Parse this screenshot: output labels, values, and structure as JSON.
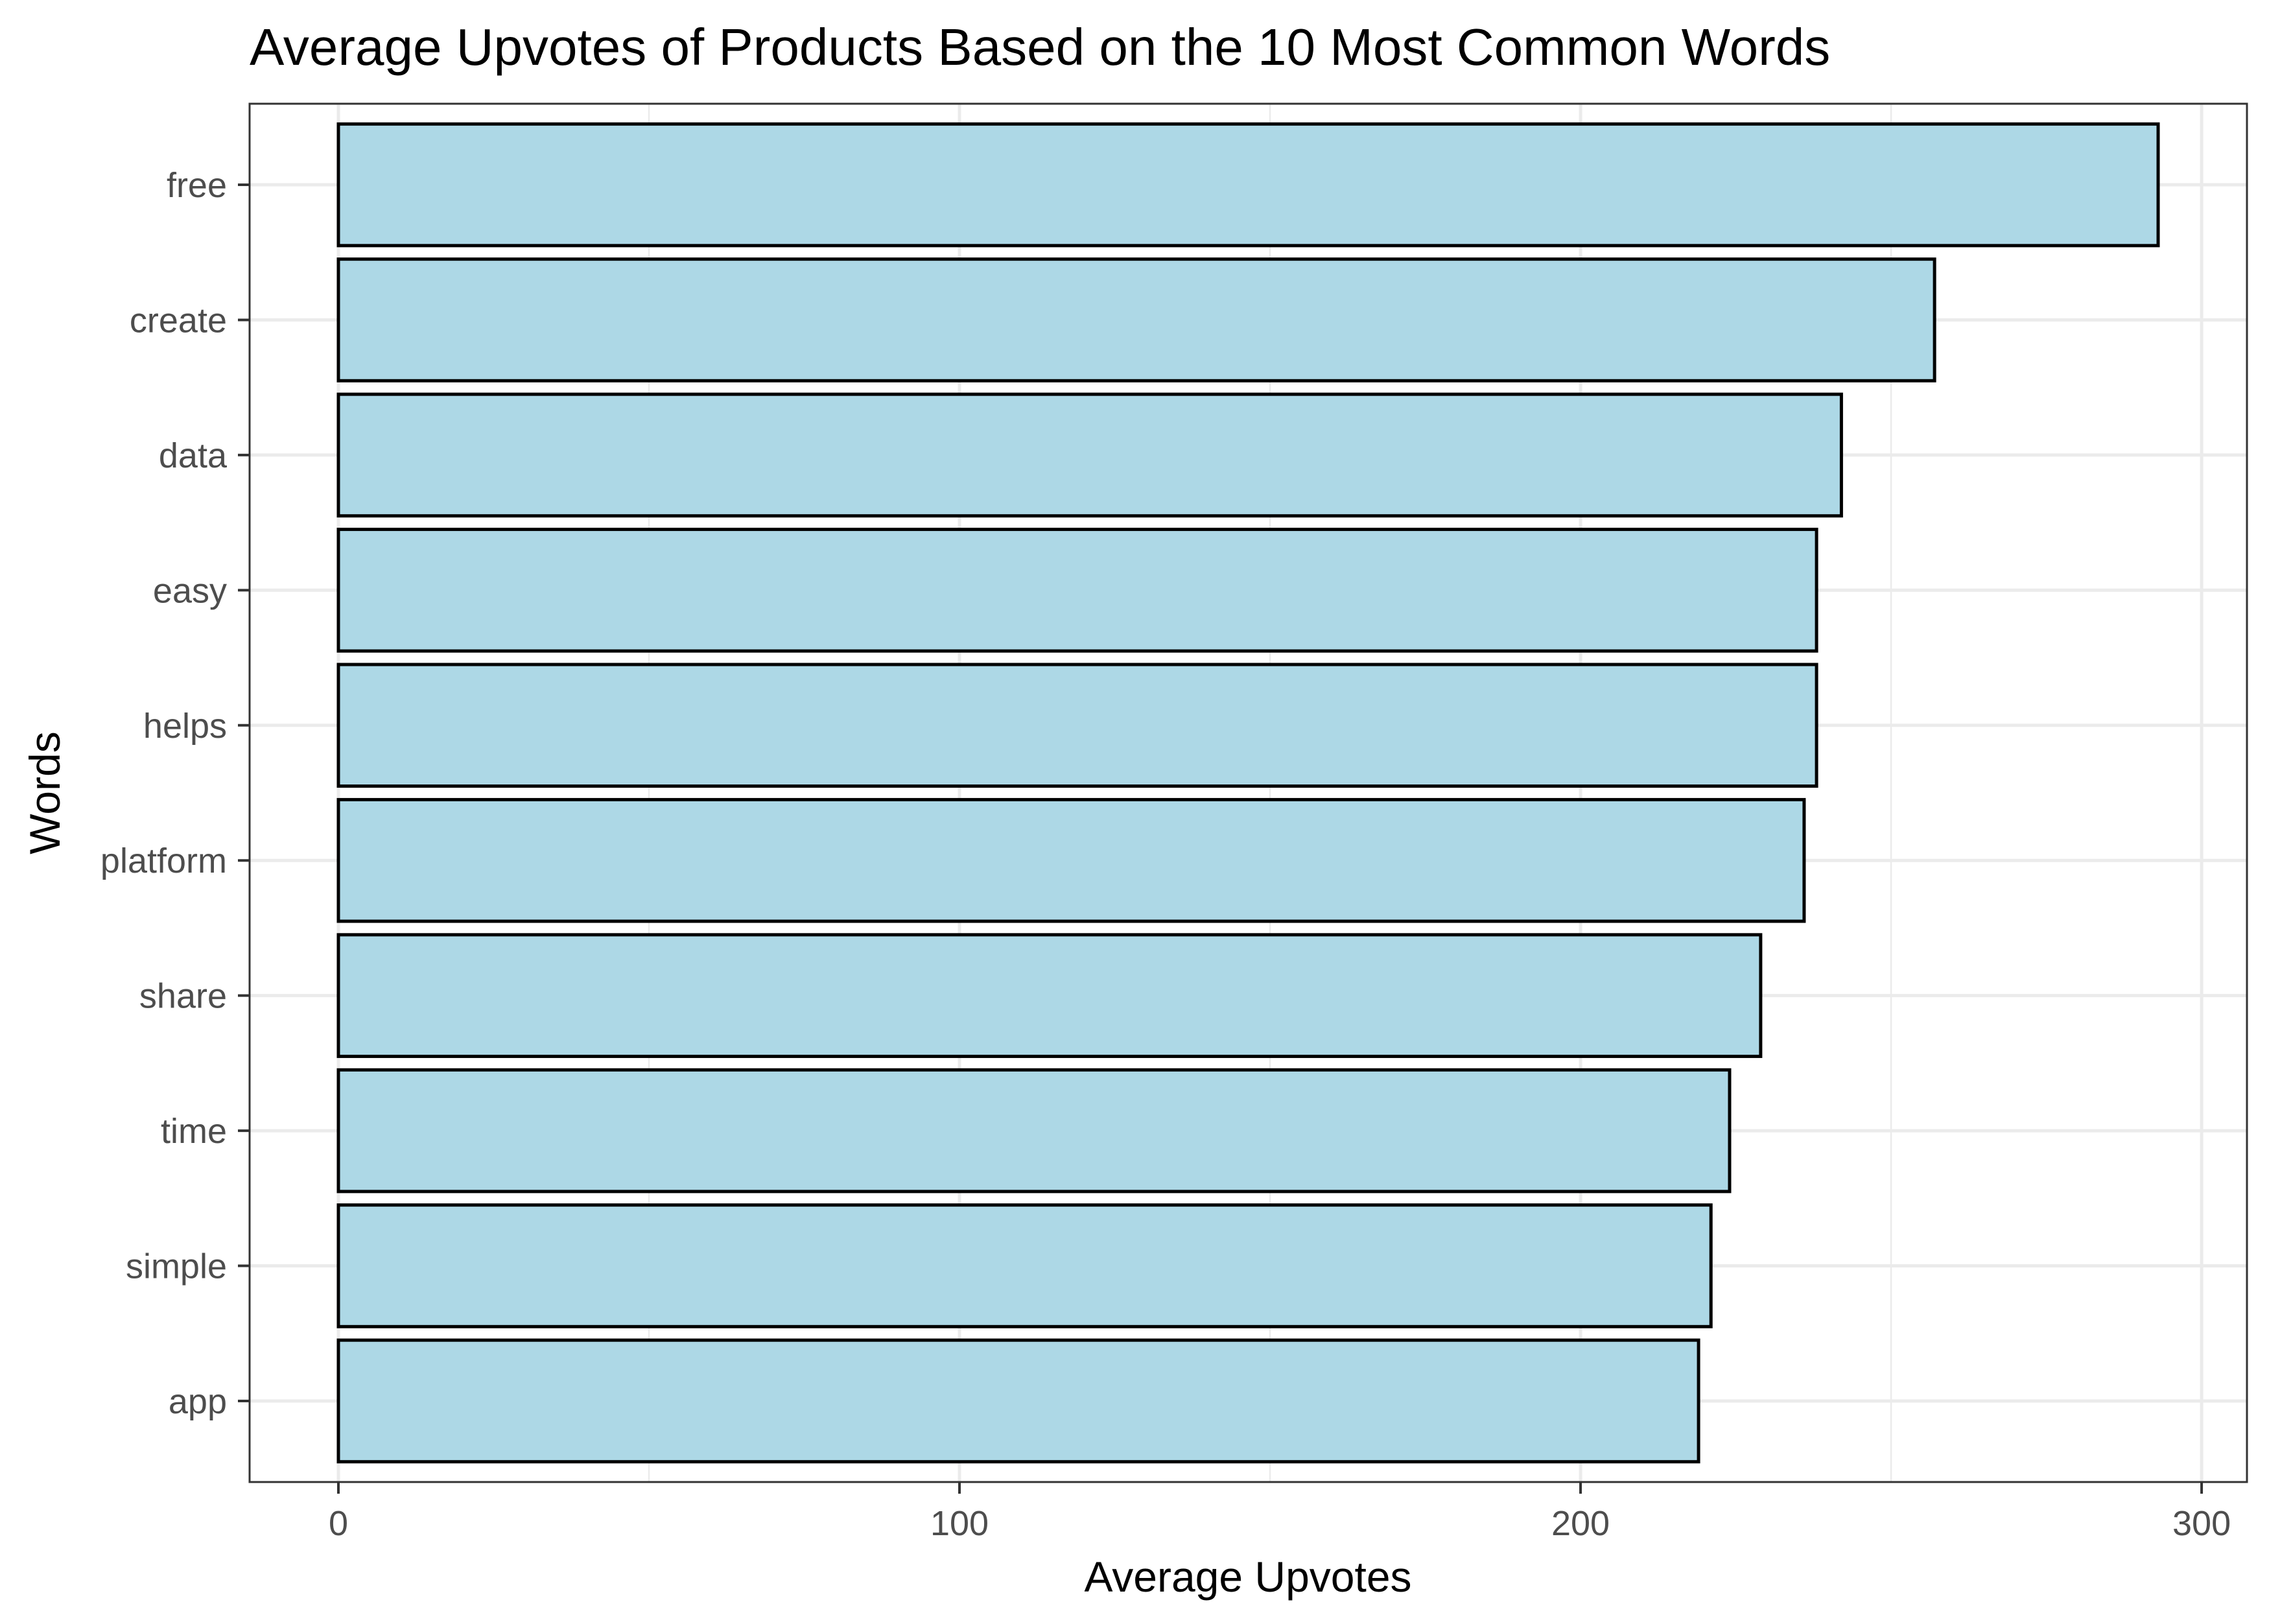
{
  "chart_data": {
    "type": "bar",
    "orientation": "horizontal",
    "title": "Average Upvotes of Products Based on the 10 Most Common Words",
    "xlabel": "Average Upvotes",
    "ylabel": "Words",
    "categories": [
      "free",
      "create",
      "data",
      "easy",
      "helps",
      "platform",
      "share",
      "time",
      "simple",
      "app"
    ],
    "values": [
      293,
      257,
      242,
      238,
      238,
      236,
      229,
      224,
      221,
      219
    ],
    "xlim": [
      -14.3,
      307.3
    ],
    "x_ticks": [
      0,
      100,
      200,
      300
    ],
    "x_tick_labels": [
      "0",
      "100",
      "200",
      "300"
    ],
    "grid": true,
    "colors": {
      "bar_fill": "#add8e6",
      "bar_outline": "#000000",
      "grid": "#ebebeb",
      "panel_border": "#333333",
      "tick_label": "#4d4d4d"
    }
  }
}
